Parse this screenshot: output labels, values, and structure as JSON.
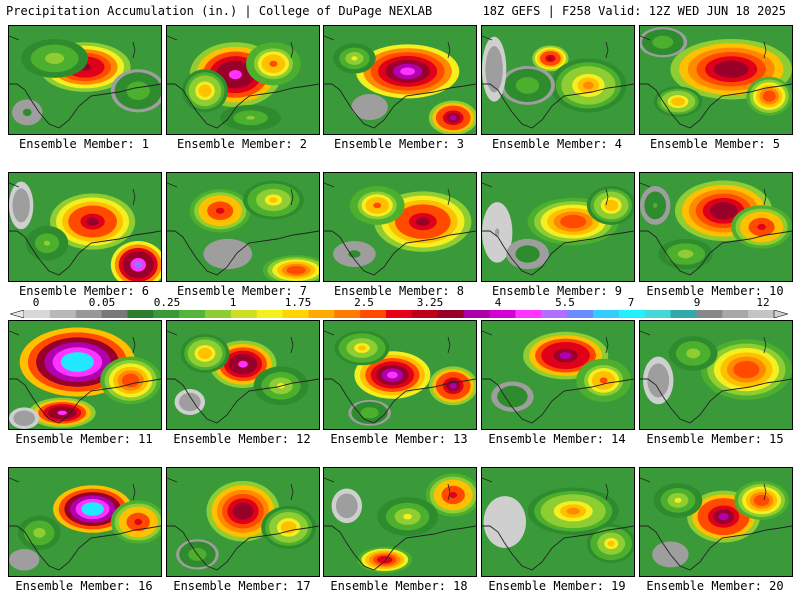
{
  "header": {
    "left": "Precipitation Accumulation (in.) | College of DuPage NEXLAB",
    "right": "18Z GEFS | F258 Valid: 12Z WED JUN 18 2025"
  },
  "panels": [
    {
      "label": "Ensemble Member: 1",
      "blobs": [
        [
          0.5,
          0.38,
          0.3,
          0.23,
          4.5
        ],
        [
          0.3,
          0.3,
          0.22,
          0.18,
          1.2
        ],
        [
          0.85,
          0.6,
          0.18,
          0.2,
          0.8
        ],
        [
          0.12,
          0.8,
          0.1,
          0.12,
          0.3
        ]
      ]
    },
    {
      "label": "Ensemble Member: 2",
      "blobs": [
        [
          0.45,
          0.45,
          0.3,
          0.3,
          5.5
        ],
        [
          0.25,
          0.6,
          0.15,
          0.2,
          2.0
        ],
        [
          0.7,
          0.35,
          0.18,
          0.2,
          2.5
        ],
        [
          0.55,
          0.85,
          0.2,
          0.12,
          1.0
        ]
      ]
    },
    {
      "label": "Ensemble Member: 3",
      "blobs": [
        [
          0.55,
          0.42,
          0.34,
          0.25,
          6.0
        ],
        [
          0.85,
          0.85,
          0.16,
          0.16,
          5.0
        ],
        [
          0.2,
          0.3,
          0.14,
          0.14,
          1.5
        ],
        [
          0.3,
          0.75,
          0.12,
          0.12,
          0.2
        ]
      ]
    },
    {
      "label": "Ensemble Member: 4",
      "blobs": [
        [
          0.45,
          0.3,
          0.12,
          0.12,
          4.0
        ],
        [
          0.7,
          0.55,
          0.25,
          0.25,
          2.2
        ],
        [
          0.3,
          0.55,
          0.18,
          0.18,
          0.8
        ],
        [
          0.08,
          0.4,
          0.08,
          0.3,
          0.1
        ]
      ]
    },
    {
      "label": "Ensemble Member: 5",
      "blobs": [
        [
          0.6,
          0.4,
          0.4,
          0.28,
          4.8
        ],
        [
          0.25,
          0.7,
          0.16,
          0.14,
          2.0
        ],
        [
          0.85,
          0.65,
          0.15,
          0.18,
          3.0
        ],
        [
          0.15,
          0.15,
          0.16,
          0.14,
          0.8
        ]
      ]
    },
    {
      "label": "Ensemble Member: 6",
      "blobs": [
        [
          0.55,
          0.45,
          0.28,
          0.26,
          4.0
        ],
        [
          0.85,
          0.85,
          0.18,
          0.22,
          6.5
        ],
        [
          0.25,
          0.65,
          0.14,
          0.16,
          1.0
        ],
        [
          0.08,
          0.3,
          0.08,
          0.22,
          0.1
        ]
      ]
    },
    {
      "label": "Ensemble Member: 7",
      "blobs": [
        [
          0.35,
          0.35,
          0.2,
          0.2,
          3.5
        ],
        [
          0.85,
          0.9,
          0.22,
          0.14,
          3.0
        ],
        [
          0.7,
          0.25,
          0.2,
          0.18,
          1.8
        ],
        [
          0.4,
          0.75,
          0.16,
          0.14,
          0.2
        ]
      ]
    },
    {
      "label": "Ensemble Member: 8",
      "blobs": [
        [
          0.65,
          0.45,
          0.32,
          0.28,
          4.2
        ],
        [
          0.35,
          0.3,
          0.18,
          0.18,
          2.5
        ],
        [
          0.2,
          0.75,
          0.14,
          0.12,
          0.3
        ]
      ]
    },
    {
      "label": "Ensemble Member: 9",
      "blobs": [
        [
          0.6,
          0.45,
          0.3,
          0.22,
          3.2
        ],
        [
          0.85,
          0.3,
          0.16,
          0.18,
          2.0
        ],
        [
          0.1,
          0.55,
          0.1,
          0.28,
          0.05
        ],
        [
          0.3,
          0.75,
          0.14,
          0.14,
          0.4
        ]
      ]
    },
    {
      "label": "Ensemble Member: 10",
      "blobs": [
        [
          0.55,
          0.35,
          0.32,
          0.28,
          4.8
        ],
        [
          0.8,
          0.5,
          0.2,
          0.2,
          3.5
        ],
        [
          0.3,
          0.75,
          0.18,
          0.14,
          1.2
        ],
        [
          0.1,
          0.3,
          0.1,
          0.18,
          0.6
        ]
      ]
    },
    {
      "label": "Ensemble Member: 11",
      "blobs": [
        [
          0.45,
          0.38,
          0.38,
          0.32,
          8.0
        ],
        [
          0.35,
          0.85,
          0.22,
          0.14,
          5.5
        ],
        [
          0.8,
          0.55,
          0.2,
          0.22,
          3.0
        ],
        [
          0.1,
          0.9,
          0.1,
          0.1,
          0.1
        ]
      ]
    },
    {
      "label": "Ensemble Member: 12",
      "blobs": [
        [
          0.5,
          0.4,
          0.22,
          0.22,
          5.5
        ],
        [
          0.25,
          0.3,
          0.16,
          0.18,
          2.0
        ],
        [
          0.75,
          0.6,
          0.18,
          0.18,
          1.5
        ],
        [
          0.15,
          0.75,
          0.1,
          0.12,
          0.1
        ]
      ]
    },
    {
      "label": "Ensemble Member: 13",
      "blobs": [
        [
          0.45,
          0.5,
          0.25,
          0.22,
          5.8
        ],
        [
          0.85,
          0.6,
          0.16,
          0.18,
          5.0
        ],
        [
          0.25,
          0.25,
          0.18,
          0.16,
          1.8
        ],
        [
          0.3,
          0.85,
          0.14,
          0.12,
          0.8
        ]
      ]
    },
    {
      "label": "Ensemble Member: 14",
      "blobs": [
        [
          0.55,
          0.32,
          0.28,
          0.22,
          5.2
        ],
        [
          0.8,
          0.55,
          0.18,
          0.2,
          2.5
        ],
        [
          0.2,
          0.7,
          0.14,
          0.14,
          0.5
        ]
      ]
    },
    {
      "label": "Ensemble Member: 15",
      "blobs": [
        [
          0.7,
          0.45,
          0.3,
          0.28,
          3.0
        ],
        [
          0.35,
          0.3,
          0.16,
          0.16,
          1.2
        ],
        [
          0.12,
          0.55,
          0.1,
          0.22,
          0.1
        ]
      ]
    },
    {
      "label": "Ensemble Member: 16",
      "blobs": [
        [
          0.55,
          0.38,
          0.26,
          0.22,
          8.5
        ],
        [
          0.85,
          0.5,
          0.18,
          0.2,
          3.5
        ],
        [
          0.2,
          0.6,
          0.14,
          0.16,
          1.2
        ],
        [
          0.1,
          0.85,
          0.1,
          0.1,
          0.2
        ]
      ]
    },
    {
      "label": "Ensemble Member: 17",
      "blobs": [
        [
          0.5,
          0.4,
          0.24,
          0.28,
          4.8
        ],
        [
          0.8,
          0.55,
          0.18,
          0.2,
          2.0
        ],
        [
          0.2,
          0.8,
          0.14,
          0.14,
          0.8
        ]
      ]
    },
    {
      "label": "Ensemble Member: 18",
      "blobs": [
        [
          0.85,
          0.25,
          0.18,
          0.2,
          3.5
        ],
        [
          0.4,
          0.85,
          0.18,
          0.12,
          3.8
        ],
        [
          0.55,
          0.45,
          0.2,
          0.18,
          1.5
        ],
        [
          0.15,
          0.35,
          0.1,
          0.16,
          0.1
        ]
      ]
    },
    {
      "label": "Ensemble Member: 19",
      "blobs": [
        [
          0.6,
          0.4,
          0.3,
          0.22,
          2.2
        ],
        [
          0.85,
          0.7,
          0.16,
          0.18,
          1.8
        ],
        [
          0.15,
          0.5,
          0.14,
          0.24,
          0.02
        ]
      ]
    },
    {
      "label": "Ensemble Member: 20",
      "blobs": [
        [
          0.55,
          0.45,
          0.24,
          0.24,
          5.0
        ],
        [
          0.8,
          0.3,
          0.18,
          0.18,
          3.0
        ],
        [
          0.25,
          0.3,
          0.16,
          0.16,
          1.5
        ],
        [
          0.2,
          0.8,
          0.12,
          0.12,
          0.2
        ]
      ]
    }
  ],
  "colorbar": {
    "tick_labels": [
      "0",
      "0.05",
      "0.25",
      "1",
      "1.75",
      "2.5",
      "3.25",
      "4",
      "5.5",
      "7",
      "9",
      "12"
    ],
    "colors": [
      "#d8d8d8",
      "#b8b8b8",
      "#989898",
      "#787878",
      "#2e7d2e",
      "#3a9a3a",
      "#55b53a",
      "#8fce33",
      "#ccdd22",
      "#f4f020",
      "#ffd400",
      "#ffaa00",
      "#ff7a00",
      "#ff4a00",
      "#e8001a",
      "#c0001a",
      "#98002a",
      "#aa00aa",
      "#d400d4",
      "#ff33ff",
      "#b070ff",
      "#6a8cff",
      "#33ccff",
      "#22f0ff",
      "#44d8d8",
      "#33aaaa",
      "#888888",
      "#a8a8a8",
      "#c4c4c4"
    ]
  }
}
